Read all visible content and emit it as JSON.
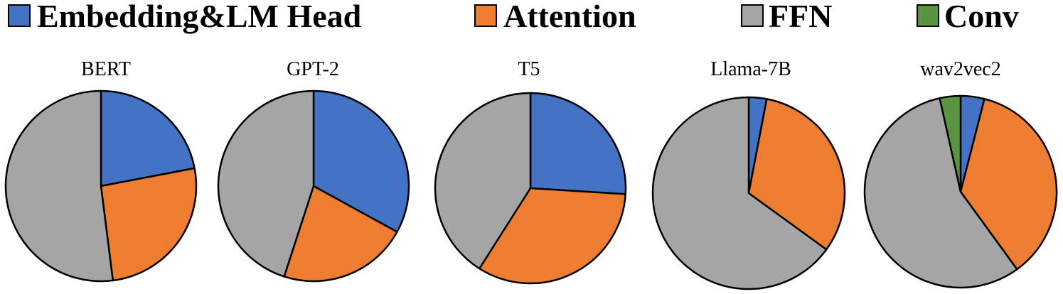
{
  "chart_data": {
    "type": "pie",
    "legend": {
      "placement": "top",
      "entries": [
        {
          "label": "Embedding&LM Head",
          "color": "#4472C4"
        },
        {
          "label": "Attention",
          "color": "#ED7D31"
        },
        {
          "label": "FFN",
          "color": "#A5A5A5"
        },
        {
          "label": "Conv",
          "color": "#5B9440"
        }
      ]
    },
    "charts": [
      {
        "title": "BERT",
        "slices": [
          {
            "name": "Embedding&LM Head",
            "value": 22
          },
          {
            "name": "Attention",
            "value": 26
          },
          {
            "name": "FFN",
            "value": 52
          },
          {
            "name": "Conv",
            "value": 0
          }
        ]
      },
      {
        "title": "GPT-2",
        "slices": [
          {
            "name": "Embedding&LM Head",
            "value": 33
          },
          {
            "name": "Attention",
            "value": 22
          },
          {
            "name": "FFN",
            "value": 45
          },
          {
            "name": "Conv",
            "value": 0
          }
        ]
      },
      {
        "title": "T5",
        "slices": [
          {
            "name": "Embedding&LM Head",
            "value": 26
          },
          {
            "name": "Attention",
            "value": 33
          },
          {
            "name": "FFN",
            "value": 41
          },
          {
            "name": "Conv",
            "value": 0
          }
        ]
      },
      {
        "title": "Llama-7B",
        "slices": [
          {
            "name": "Embedding&LM Head",
            "value": 3
          },
          {
            "name": "Attention",
            "value": 32
          },
          {
            "name": "FFN",
            "value": 65
          },
          {
            "name": "Conv",
            "value": 0
          }
        ]
      },
      {
        "title": "wav2vec2",
        "slices": [
          {
            "name": "Embedding&LM Head",
            "value": 4
          },
          {
            "name": "Attention",
            "value": 36
          },
          {
            "name": "FFN",
            "value": 56.5
          },
          {
            "name": "Conv",
            "value": 3.5
          }
        ]
      }
    ]
  }
}
